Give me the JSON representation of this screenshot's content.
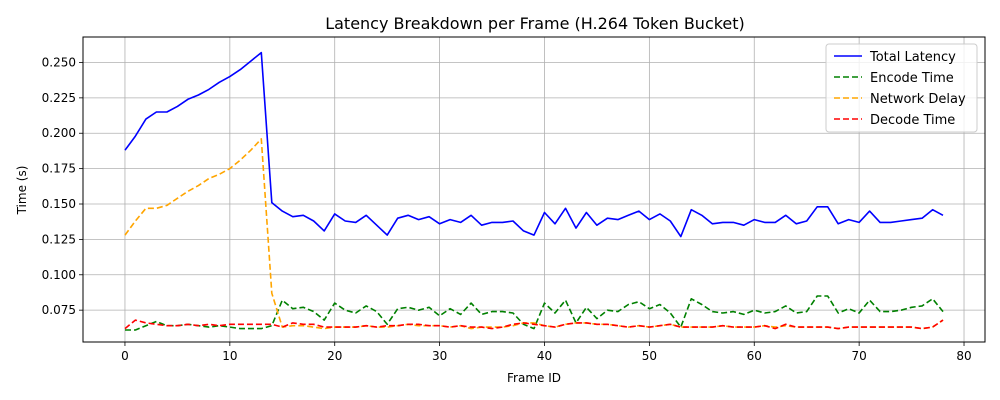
{
  "chart_data": {
    "type": "line",
    "title": "Latency Breakdown per Frame (H.264 Token Bucket)",
    "xlabel": "Frame ID",
    "ylabel": "Time (s)",
    "xlim": [
      -4,
      82
    ],
    "ylim": [
      0.0525,
      0.268
    ],
    "xticks": [
      0,
      10,
      20,
      30,
      40,
      50,
      60,
      70,
      80
    ],
    "yticks": [
      0.075,
      0.1,
      0.125,
      0.15,
      0.175,
      0.2,
      0.225,
      0.25
    ],
    "ytick_labels": [
      "0.075",
      "0.100",
      "0.125",
      "0.150",
      "0.175",
      "0.200",
      "0.225",
      "0.250"
    ],
    "grid": true,
    "legend_position": "top-right",
    "series": [
      {
        "name": "Total Latency",
        "color": "#0000ff",
        "style": "solid",
        "values": [
          0.188,
          0.198,
          0.21,
          0.215,
          0.215,
          0.219,
          0.224,
          0.227,
          0.231,
          0.236,
          0.24,
          0.245,
          0.251,
          0.257,
          0.151,
          0.145,
          0.141,
          0.142,
          0.138,
          0.131,
          0.143,
          0.138,
          0.137,
          0.142,
          0.135,
          0.128,
          0.14,
          0.142,
          0.139,
          0.141,
          0.136,
          0.139,
          0.137,
          0.142,
          0.135,
          0.137,
          0.137,
          0.138,
          0.131,
          0.128,
          0.144,
          0.136,
          0.147,
          0.133,
          0.144,
          0.135,
          0.14,
          0.139,
          0.142,
          0.145,
          0.139,
          0.143,
          0.138,
          0.127,
          0.146,
          0.142,
          0.136,
          0.137,
          0.137,
          0.135,
          0.139,
          0.137,
          0.137,
          0.142,
          0.136,
          0.138,
          0.148,
          0.148,
          0.136,
          0.139,
          0.137,
          0.145,
          0.137,
          0.137,
          0.138,
          0.139,
          0.14,
          0.146,
          0.142
        ]
      },
      {
        "name": "Encode Time",
        "color": "#008000",
        "style": "dashed",
        "values": [
          0.061,
          0.061,
          0.064,
          0.067,
          0.064,
          0.064,
          0.065,
          0.064,
          0.063,
          0.064,
          0.063,
          0.062,
          0.062,
          0.062,
          0.064,
          0.082,
          0.076,
          0.077,
          0.074,
          0.068,
          0.08,
          0.075,
          0.073,
          0.078,
          0.074,
          0.065,
          0.076,
          0.077,
          0.075,
          0.077,
          0.071,
          0.076,
          0.072,
          0.08,
          0.072,
          0.074,
          0.074,
          0.073,
          0.065,
          0.062,
          0.08,
          0.073,
          0.082,
          0.066,
          0.077,
          0.069,
          0.075,
          0.074,
          0.079,
          0.081,
          0.076,
          0.079,
          0.073,
          0.063,
          0.083,
          0.079,
          0.074,
          0.073,
          0.074,
          0.072,
          0.075,
          0.073,
          0.074,
          0.078,
          0.073,
          0.074,
          0.085,
          0.085,
          0.073,
          0.076,
          0.073,
          0.082,
          0.074,
          0.074,
          0.075,
          0.077,
          0.078,
          0.083,
          0.074
        ]
      },
      {
        "name": "Network Delay",
        "color": "#ffa500",
        "style": "dashed",
        "values": [
          0.128,
          0.138,
          0.147,
          0.147,
          0.149,
          0.154,
          0.159,
          0.163,
          0.168,
          0.171,
          0.175,
          0.181,
          0.188,
          0.196,
          0.087,
          0.063,
          0.064,
          0.064,
          0.063,
          0.062,
          0.063,
          0.063,
          0.063,
          0.064,
          0.063,
          0.063,
          0.064,
          0.065,
          0.064,
          0.064,
          0.064,
          0.063,
          0.064,
          0.062,
          0.063,
          0.063,
          0.063,
          0.064,
          0.066,
          0.066,
          0.064,
          0.063,
          0.065,
          0.066,
          0.066,
          0.065,
          0.065,
          0.064,
          0.063,
          0.064,
          0.063,
          0.064,
          0.065,
          0.063,
          0.063,
          0.063,
          0.063,
          0.064,
          0.063,
          0.063,
          0.063,
          0.064,
          0.063,
          0.064,
          0.063,
          0.063,
          0.063,
          0.063,
          0.062,
          0.063,
          0.063,
          0.063,
          0.063,
          0.063,
          0.063,
          0.063,
          0.062,
          0.063,
          0.068
        ]
      },
      {
        "name": "Decode Time",
        "color": "#ff0000",
        "style": "dashed",
        "values": [
          0.062,
          0.068,
          0.066,
          0.065,
          0.064,
          0.064,
          0.065,
          0.064,
          0.065,
          0.064,
          0.065,
          0.065,
          0.065,
          0.065,
          0.065,
          0.063,
          0.066,
          0.065,
          0.065,
          0.063,
          0.063,
          0.063,
          0.063,
          0.064,
          0.063,
          0.064,
          0.064,
          0.065,
          0.065,
          0.064,
          0.064,
          0.063,
          0.064,
          0.063,
          0.063,
          0.062,
          0.063,
          0.065,
          0.066,
          0.065,
          0.064,
          0.063,
          0.065,
          0.066,
          0.066,
          0.065,
          0.065,
          0.064,
          0.063,
          0.064,
          0.063,
          0.064,
          0.065,
          0.063,
          0.063,
          0.063,
          0.063,
          0.064,
          0.063,
          0.063,
          0.063,
          0.064,
          0.062,
          0.065,
          0.063,
          0.063,
          0.063,
          0.063,
          0.062,
          0.063,
          0.063,
          0.063,
          0.063,
          0.063,
          0.063,
          0.063,
          0.062,
          0.063,
          0.068
        ]
      }
    ]
  }
}
